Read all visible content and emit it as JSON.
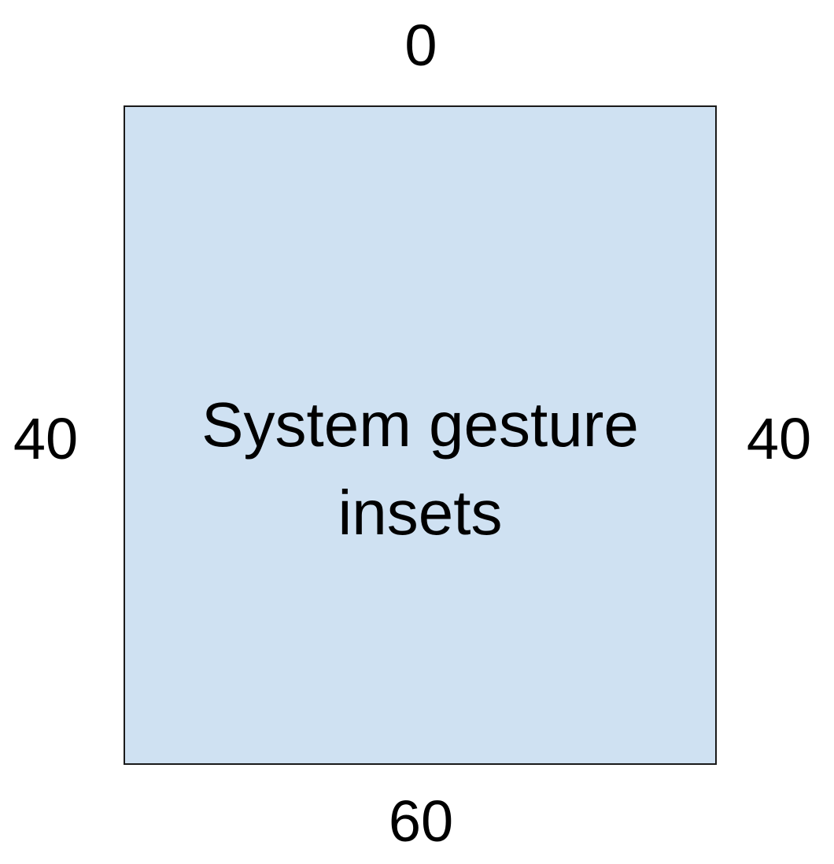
{
  "box": {
    "label": "System gesture insets",
    "fill_color": "#cfe1f2",
    "border_color": "#1a1a1a"
  },
  "insets": {
    "top": "0",
    "right": "40",
    "bottom": "60",
    "left": "40"
  }
}
